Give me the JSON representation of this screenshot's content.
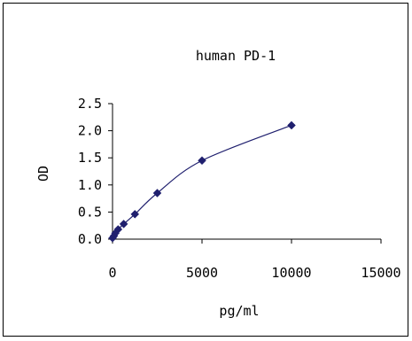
{
  "chart_data": {
    "type": "line",
    "title": "human PD-1",
    "xlabel": "pg/ml",
    "ylabel": "OD",
    "xlim": [
      0,
      15000
    ],
    "ylim": [
      0,
      2.5
    ],
    "x_ticks": [
      0,
      5000,
      10000,
      15000
    ],
    "x_tick_labels": [
      "0",
      "5000",
      "10000",
      "15000"
    ],
    "y_ticks": [
      0,
      0.5,
      1.0,
      1.5,
      2.0,
      2.5
    ],
    "y_tick_labels": [
      "0.0",
      "0.5",
      "1.0",
      "1.5",
      "2.0",
      "2.5"
    ],
    "grid": false,
    "legend": "none",
    "marker": "diamond",
    "line_style": "smooth",
    "series": [
      {
        "color": "#1f1f6e",
        "x": [
          0,
          78,
          156,
          312,
          625,
          1250,
          2500,
          5000,
          10000
        ],
        "y": [
          0.02,
          0.06,
          0.11,
          0.18,
          0.28,
          0.46,
          0.85,
          1.45,
          2.1
        ]
      }
    ]
  }
}
